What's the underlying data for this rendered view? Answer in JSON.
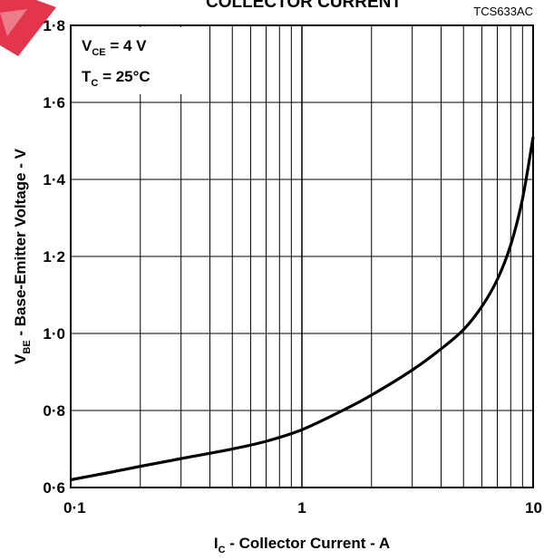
{
  "chart_data": {
    "type": "line",
    "title": "COLLECTOR CURRENT",
    "reference_code": "TCS633AC",
    "x_scale": "log",
    "xlim": [
      0.1,
      10
    ],
    "ylim": [
      0.6,
      1.8
    ],
    "x_ticks": [
      "0·1",
      "1",
      "10"
    ],
    "y_ticks": [
      "0·6",
      "0·8",
      "1·0",
      "1·2",
      "1·4",
      "1·6",
      "1·8"
    ],
    "xlabel": {
      "main": "I",
      "sub": "C",
      "rest": " - Collector Current - A"
    },
    "ylabel": {
      "main": "V",
      "sub": "BE",
      "rest": " - Base-Emitter Voltage - V"
    },
    "conditions": [
      {
        "main": "V",
        "sub": "CE",
        "rest": " = 4 V"
      },
      {
        "main": "T",
        "sub": "C",
        "rest": " = 25°C"
      }
    ],
    "grid": true,
    "series": [
      {
        "x": [
          0.1,
          0.15,
          0.2,
          0.3,
          0.5,
          0.7,
          1,
          1.5,
          2,
          3,
          4,
          5,
          6,
          7,
          8,
          9,
          10
        ],
        "y": [
          0.62,
          0.64,
          0.655,
          0.675,
          0.7,
          0.72,
          0.75,
          0.8,
          0.84,
          0.905,
          0.96,
          1.01,
          1.07,
          1.14,
          1.23,
          1.35,
          1.51
        ]
      }
    ]
  }
}
